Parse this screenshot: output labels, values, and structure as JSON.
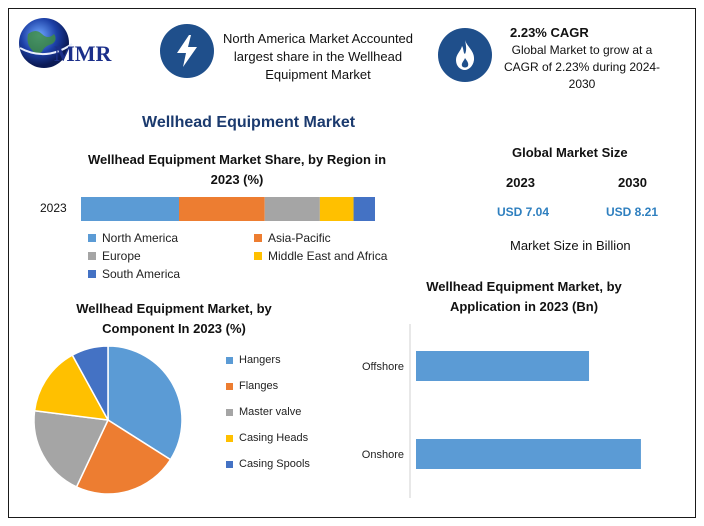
{
  "header": {
    "logo_text": "MMR",
    "highlight_text": "North America Market Accounted largest share in the Wellhead Equipment Market",
    "cagr_title": "2.23% CAGR",
    "cagr_text": "Global Market to grow at a CAGR of 2.23% during 2024-2030"
  },
  "main_title": "Wellhead Equipment Market",
  "icons": {
    "highlight": "lightning-bolt-icon",
    "cagr": "flame-icon",
    "logo": "globe-icon"
  },
  "global_size": {
    "title": "Global Market Size",
    "year_a": "2023",
    "year_b": "2030",
    "value_a": "USD 7.04",
    "value_b": "USD 8.21",
    "unit_note": "Market Size in Billion"
  },
  "chart_data": [
    {
      "type": "bar",
      "orientation": "horizontal-stacked",
      "title": "Wellhead Equipment Market Share, by Region in 2023 (%)",
      "categories": [
        "2023"
      ],
      "series": [
        {
          "name": "North America",
          "values": [
            32
          ],
          "color": "#5b9bd5"
        },
        {
          "name": "Asia-Pacific",
          "values": [
            28
          ],
          "color": "#ed7d31"
        },
        {
          "name": "Europe",
          "values": [
            18
          ],
          "color": "#a5a5a5"
        },
        {
          "name": "Middle East and Africa",
          "values": [
            11
          ],
          "color": "#ffc000"
        },
        {
          "name": "South America",
          "values": [
            7
          ],
          "color": "#4472c4"
        }
      ],
      "legend": "bottom"
    },
    {
      "type": "pie",
      "title": "Wellhead Equipment Market, by Component In 2023 (%)",
      "slices": [
        {
          "name": "Hangers",
          "value": 34,
          "color": "#5b9bd5"
        },
        {
          "name": "Flanges",
          "value": 23,
          "color": "#ed7d31"
        },
        {
          "name": "Master valve",
          "value": 20,
          "color": "#a5a5a5"
        },
        {
          "name": "Casing Heads",
          "value": 15,
          "color": "#ffc000"
        },
        {
          "name": "Casing Spools",
          "value": 8,
          "color": "#4472c4"
        }
      ],
      "legend": "right"
    },
    {
      "type": "bar",
      "orientation": "horizontal",
      "title": "Wellhead Equipment Market, by Application in 2023 (Bn)",
      "categories": [
        "Offshore",
        "Onshore"
      ],
      "values": [
        3.0,
        3.9
      ],
      "color": "#5b9bd5",
      "xlim": [
        0,
        4.3
      ]
    }
  ]
}
